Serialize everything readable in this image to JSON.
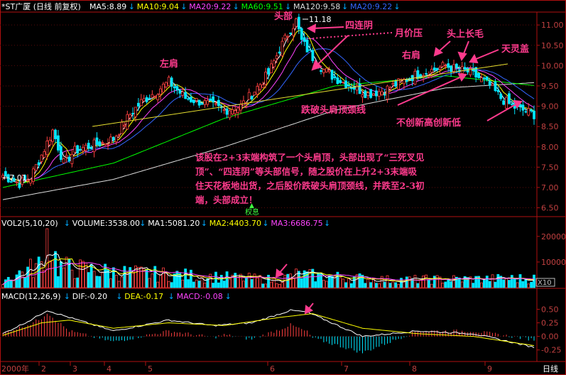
{
  "chart_data": {
    "type": "candlestick",
    "panels": {
      "price": {
        "ylim": [
          6.3,
          11.3
        ],
        "yticks": [
          "11.00",
          "10.50",
          "10.00",
          "9.50",
          "9.00",
          "8.50",
          "8.00",
          "7.50",
          "7.00",
          "6.50"
        ],
        "legend": {
          "title": "*ST广厦 (日线 前复权)",
          "items": [
            {
              "label": "MA5:8.89",
              "color": "#ffffff"
            },
            {
              "label": "MA10:9.04",
              "color": "#ffff00"
            },
            {
              "label": "MA20:9.22",
              "color": "#ff44ff"
            },
            {
              "label": "MA60:9.51",
              "color": "#00ff00"
            },
            {
              "label": "MA120:9.58",
              "color": "#dddddd"
            },
            {
              "label": "MA20:9.22",
              "color": "#3366ff"
            }
          ]
        },
        "high_label": "11.18",
        "low_label": "←7.01",
        "flag_label": "权息"
      },
      "volume": {
        "ylim": [
          0,
          23000
        ],
        "yticks": [
          "20000",
          "10000"
        ],
        "unit": "X10",
        "legend": [
          {
            "label": "VOL2(5,10,20)",
            "color": "#ffffff"
          },
          {
            "label": "VOLUME:3538.00",
            "color": "#ffffff"
          },
          {
            "label": "MA1:5081.20",
            "color": "#ffffff"
          },
          {
            "label": "MA2:4403.70",
            "color": "#ffff00"
          },
          {
            "label": "MA3:6686.75",
            "color": "#ff44ff"
          }
        ]
      },
      "macd": {
        "ylim": [
          -0.45,
          0.65
        ],
        "yticks": [
          "0.50",
          "0.25",
          "0.00",
          "-0.25"
        ],
        "legend": [
          {
            "label": "MACD(12,26,9)",
            "color": "#ffffff"
          },
          {
            "label": "DIF:-0.20",
            "color": "#ffffff"
          },
          {
            "label": "DEA:-0.17",
            "color": "#ffff00"
          },
          {
            "label": "MACD:-0.08",
            "color": "#ff44ff"
          }
        ]
      }
    },
    "x_axis": {
      "labels": [
        "2000年",
        "2",
        "3",
        "4",
        "5",
        "6",
        "7",
        "8",
        "9"
      ],
      "period": "日线"
    },
    "annotations": {
      "left_shoulder": "左肩",
      "head": "头部",
      "four_yin": "四连阴",
      "month_pressure": "月价压",
      "right_shoulder": "右肩",
      "long_upper_shadow": "头上长毛",
      "heaven_cover": "天灵盖",
      "break_neckline": "跌破头肩顶颈线",
      "no_new_high": "不创新高创新低",
      "note_lines": [
        "该股在2+3末端构筑了一个头肩顶，头部出现了“三死叉见",
        "顶”、“四连阴”等头部信号，随之股价在上升2+3末端吸",
        "住天花板地出货，之后股价跌破头肩顶颈线，并跌至2-3初",
        "端，头部成立！"
      ]
    },
    "series_keypoints": {
      "close": [
        [
          0,
          7.3
        ],
        [
          6,
          7.1
        ],
        [
          10,
          7.25
        ],
        [
          14,
          7.8
        ],
        [
          18,
          8.4
        ],
        [
          22,
          7.6
        ],
        [
          26,
          7.9
        ],
        [
          30,
          8.0
        ],
        [
          36,
          8.1
        ],
        [
          40,
          8.2
        ],
        [
          46,
          8.8
        ],
        [
          50,
          9.1
        ],
        [
          56,
          9.4
        ],
        [
          60,
          9.6
        ],
        [
          66,
          9.2
        ],
        [
          72,
          9.1
        ],
        [
          80,
          8.9
        ],
        [
          86,
          9.0
        ],
        [
          90,
          9.3
        ],
        [
          96,
          9.8
        ],
        [
          100,
          10.4
        ],
        [
          104,
          10.9
        ],
        [
          106,
          11.1
        ],
        [
          108,
          10.6
        ],
        [
          112,
          10.2
        ],
        [
          116,
          9.9
        ],
        [
          120,
          9.7
        ],
        [
          126,
          9.5
        ],
        [
          132,
          9.3
        ],
        [
          138,
          9.4
        ],
        [
          144,
          9.6
        ],
        [
          150,
          9.8
        ],
        [
          156,
          9.9
        ],
        [
          160,
          10.0
        ],
        [
          164,
          9.9
        ],
        [
          168,
          9.85
        ],
        [
          172,
          9.7
        ],
        [
          176,
          9.5
        ],
        [
          180,
          9.2
        ],
        [
          184,
          9.0
        ],
        [
          188,
          8.9
        ],
        [
          192,
          8.8
        ]
      ],
      "ma120": [
        [
          0,
          6.7
        ],
        [
          40,
          7.2
        ],
        [
          80,
          8.0
        ],
        [
          120,
          8.9
        ],
        [
          160,
          9.45
        ],
        [
          192,
          9.58
        ]
      ],
      "ma60": [
        [
          0,
          7.0
        ],
        [
          40,
          7.6
        ],
        [
          80,
          8.7
        ],
        [
          120,
          9.5
        ],
        [
          160,
          9.75
        ],
        [
          192,
          9.51
        ]
      ],
      "volume_keypoints": [
        [
          0,
          3000
        ],
        [
          14,
          9000
        ],
        [
          16,
          22000
        ],
        [
          20,
          8000
        ],
        [
          40,
          6000
        ],
        [
          60,
          5000
        ],
        [
          100,
          3000
        ],
        [
          106,
          5000
        ],
        [
          140,
          3000
        ],
        [
          192,
          3538
        ]
      ],
      "dif": [
        [
          0,
          0.05
        ],
        [
          10,
          0.3
        ],
        [
          16,
          0.48
        ],
        [
          24,
          0.35
        ],
        [
          40,
          0.1
        ],
        [
          60,
          0.3
        ],
        [
          76,
          0.2
        ],
        [
          90,
          0.25
        ],
        [
          104,
          0.48
        ],
        [
          110,
          0.45
        ],
        [
          130,
          0.0
        ],
        [
          150,
          0.1
        ],
        [
          170,
          0.05
        ],
        [
          192,
          -0.2
        ]
      ],
      "dea": [
        [
          0,
          0.02
        ],
        [
          14,
          0.25
        ],
        [
          24,
          0.3
        ],
        [
          40,
          0.15
        ],
        [
          60,
          0.25
        ],
        [
          80,
          0.2
        ],
        [
          100,
          0.35
        ],
        [
          112,
          0.42
        ],
        [
          130,
          0.15
        ],
        [
          150,
          0.05
        ],
        [
          170,
          0.0
        ],
        [
          192,
          -0.17
        ]
      ]
    }
  }
}
